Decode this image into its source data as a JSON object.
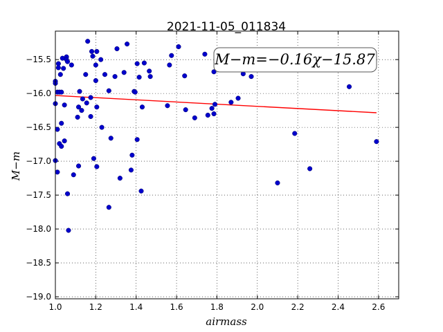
{
  "chart_data": {
    "type": "scatter",
    "title": "2021-11-05_011834",
    "xlabel": "airmass",
    "ylabel": "M−m",
    "annotation": "M−m=−0.16χ−15.87",
    "xlim": [
      1.0,
      2.7
    ],
    "ylim": [
      -19.03,
      -15.08
    ],
    "y_inverted": true,
    "grid": true,
    "xticks": [
      1.0,
      1.2,
      1.4,
      1.6,
      1.8,
      2.0,
      2.2,
      2.4,
      2.6
    ],
    "xtick_labels": [
      "1.0",
      "1.2",
      "1.4",
      "1.6",
      "1.8",
      "2.0",
      "2.2",
      "2.4",
      "2.6"
    ],
    "yticks": [
      -15.5,
      -16.0,
      -16.5,
      -17.0,
      -17.5,
      -18.0,
      -18.5,
      -19.0
    ],
    "ytick_labels": [
      "−15.5",
      "−16.0",
      "−16.5",
      "−17.0",
      "−17.5",
      "−18.0",
      "−18.5",
      "−19.0"
    ],
    "point_color": "#0000cc",
    "fit_color": "#ff0000",
    "fit": {
      "slope": -0.16,
      "intercept": -15.87,
      "x_range": [
        1.0,
        2.59
      ]
    },
    "points": [
      [
        1.0,
        -15.82
      ],
      [
        1.0,
        -15.85
      ],
      [
        1.0,
        -16.15
      ],
      [
        1.0,
        -16.99
      ],
      [
        1.01,
        -15.98
      ],
      [
        1.01,
        -16.53
      ],
      [
        1.01,
        -17.16
      ],
      [
        1.015,
        -15.56
      ],
      [
        1.015,
        -15.62
      ],
      [
        1.02,
        -15.98
      ],
      [
        1.02,
        -16.74
      ],
      [
        1.025,
        -15.72
      ],
      [
        1.03,
        -15.98
      ],
      [
        1.03,
        -16.44
      ],
      [
        1.03,
        -16.78
      ],
      [
        1.035,
        -15.48
      ],
      [
        1.04,
        -15.63
      ],
      [
        1.045,
        -16.17
      ],
      [
        1.045,
        -16.7
      ],
      [
        1.055,
        -15.46
      ],
      [
        1.055,
        -15.5
      ],
      [
        1.06,
        -15.53
      ],
      [
        1.06,
        -17.48
      ],
      [
        1.065,
        -18.02
      ],
      [
        1.08,
        -15.58
      ],
      [
        1.09,
        -17.2
      ],
      [
        1.11,
        -16.35
      ],
      [
        1.115,
        -16.2
      ],
      [
        1.115,
        -17.07
      ],
      [
        1.12,
        -15.97
      ],
      [
        1.13,
        -16.25
      ],
      [
        1.135,
        -16.08
      ],
      [
        1.15,
        -15.72
      ],
      [
        1.155,
        -16.14
      ],
      [
        1.16,
        -15.23
      ],
      [
        1.175,
        -16.06
      ],
      [
        1.175,
        -16.34
      ],
      [
        1.18,
        -15.38
      ],
      [
        1.185,
        -15.45
      ],
      [
        1.19,
        -16.96
      ],
      [
        1.2,
        -15.58
      ],
      [
        1.2,
        -15.81
      ],
      [
        1.205,
        -15.38
      ],
      [
        1.205,
        -16.2
      ],
      [
        1.205,
        -17.08
      ],
      [
        1.225,
        -15.5
      ],
      [
        1.23,
        -16.5
      ],
      [
        1.245,
        -15.72
      ],
      [
        1.265,
        -15.96
      ],
      [
        1.265,
        -17.68
      ],
      [
        1.275,
        -16.66
      ],
      [
        1.295,
        -15.75
      ],
      [
        1.305,
        -15.34
      ],
      [
        1.32,
        -17.25
      ],
      [
        1.34,
        -15.69
      ],
      [
        1.355,
        -15.27
      ],
      [
        1.375,
        -17.13
      ],
      [
        1.38,
        -16.91
      ],
      [
        1.39,
        -15.97
      ],
      [
        1.395,
        -15.98
      ],
      [
        1.405,
        -15.56
      ],
      [
        1.405,
        -16.68
      ],
      [
        1.415,
        -15.76
      ],
      [
        1.425,
        -17.44
      ],
      [
        1.43,
        -16.2
      ],
      [
        1.44,
        -15.55
      ],
      [
        1.465,
        -15.67
      ],
      [
        1.47,
        -15.75
      ],
      [
        1.555,
        -16.18
      ],
      [
        1.565,
        -15.58
      ],
      [
        1.575,
        -15.44
      ],
      [
        1.61,
        -15.31
      ],
      [
        1.64,
        -15.74
      ],
      [
        1.645,
        -16.24
      ],
      [
        1.69,
        -16.36
      ],
      [
        1.74,
        -15.42
      ],
      [
        1.755,
        -16.32
      ],
      [
        1.775,
        -16.22
      ],
      [
        1.785,
        -15.68
      ],
      [
        1.785,
        -16.3
      ],
      [
        1.79,
        -16.16
      ],
      [
        1.87,
        -16.13
      ],
      [
        1.905,
        -16.07
      ],
      [
        1.93,
        -15.71
      ],
      [
        1.97,
        -15.75
      ],
      [
        2.1,
        -17.32
      ],
      [
        2.185,
        -16.59
      ],
      [
        2.26,
        -17.11
      ],
      [
        2.455,
        -15.9
      ],
      [
        2.59,
        -16.71
      ]
    ]
  }
}
